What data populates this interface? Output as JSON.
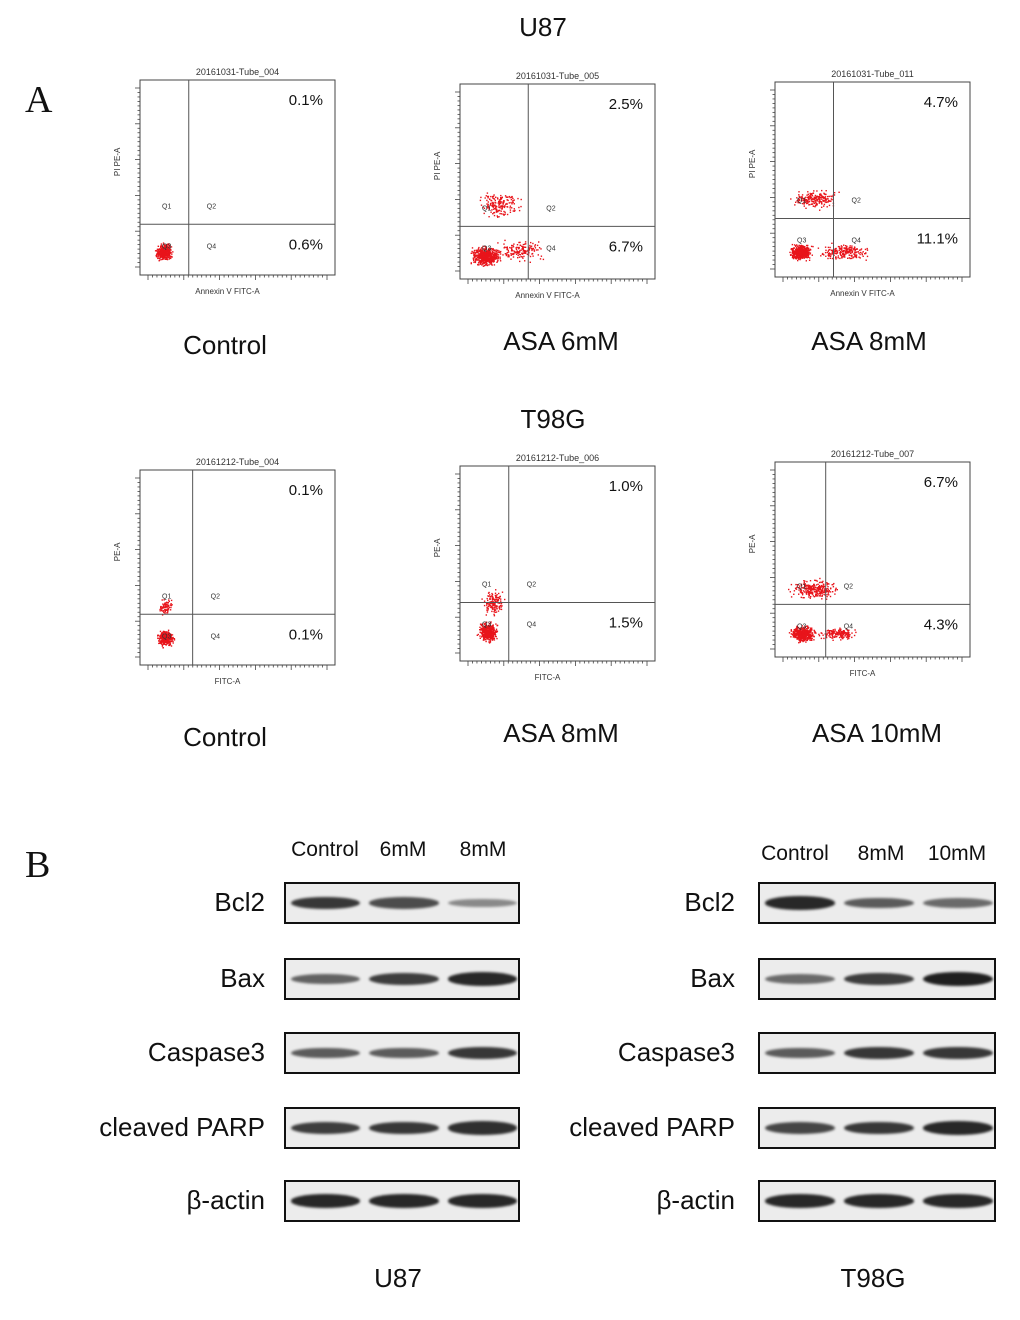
{
  "panel_a": {
    "letter": "A",
    "groups": [
      {
        "title": "U87",
        "plots": [
          {
            "tube": "20161031-Tube_004",
            "caption": "Control",
            "upper_right": "0.1%",
            "lower_right": "0.6%",
            "y_axis": "PI PE-A",
            "x_axis": "Annexin V FITC-A"
          },
          {
            "tube": "20161031-Tube_005",
            "caption": "ASA 6mM",
            "upper_right": "2.5%",
            "lower_right": "6.7%",
            "y_axis": "PI PE-A",
            "x_axis": "Annexin V FITC-A"
          },
          {
            "tube": "20161031-Tube_011",
            "caption": "ASA 8mM",
            "upper_right": "4.7%",
            "lower_right": "11.1%",
            "y_axis": "PI PE-A",
            "x_axis": "Annexin V FITC-A"
          }
        ]
      },
      {
        "title": "T98G",
        "plots": [
          {
            "tube": "20161212-Tube_004",
            "caption": "Control",
            "upper_right": "0.1%",
            "lower_right": "0.1%",
            "y_axis": "PE-A",
            "x_axis": "FITC-A"
          },
          {
            "tube": "20161212-Tube_006",
            "caption": "ASA 8mM",
            "upper_right": "1.0%",
            "lower_right": "1.5%",
            "y_axis": "PE-A",
            "x_axis": "FITC-A"
          },
          {
            "tube": "20161212-Tube_007",
            "caption": "ASA 10mM",
            "upper_right": "6.7%",
            "lower_right": "4.3%",
            "y_axis": "PE-A",
            "x_axis": "FITC-A"
          }
        ]
      }
    ],
    "quadrants": [
      "Q1",
      "Q2",
      "Q3",
      "Q4"
    ],
    "dot_color": "#e8141b"
  },
  "panel_b": {
    "letter": "B",
    "blots": [
      {
        "cell_line": "U87",
        "lanes": [
          "Control",
          "6mM",
          "8mM"
        ],
        "proteins": [
          {
            "name": "Bcl2",
            "intensity": [
              0.85,
              0.7,
              0.3
            ]
          },
          {
            "name": "Bax",
            "intensity": [
              0.55,
              0.8,
              0.95
            ]
          },
          {
            "name": "Caspase3",
            "intensity": [
              0.6,
              0.6,
              0.85
            ]
          },
          {
            "name": "cleaved PARP",
            "intensity": [
              0.8,
              0.85,
              0.9
            ]
          },
          {
            "name": "β-actin",
            "intensity": [
              0.95,
              0.95,
              0.95
            ]
          }
        ]
      },
      {
        "cell_line": "T98G",
        "lanes": [
          "Control",
          "8mM",
          "10mM"
        ],
        "proteins": [
          {
            "name": "Bcl2",
            "intensity": [
              0.95,
              0.6,
              0.5
            ]
          },
          {
            "name": "Bax",
            "intensity": [
              0.5,
              0.8,
              1.0
            ]
          },
          {
            "name": "Caspase3",
            "intensity": [
              0.6,
              0.85,
              0.85
            ]
          },
          {
            "name": "cleaved PARP",
            "intensity": [
              0.75,
              0.85,
              0.95
            ]
          },
          {
            "name": "β-actin",
            "intensity": [
              0.95,
              0.95,
              0.95
            ]
          }
        ]
      }
    ]
  }
}
